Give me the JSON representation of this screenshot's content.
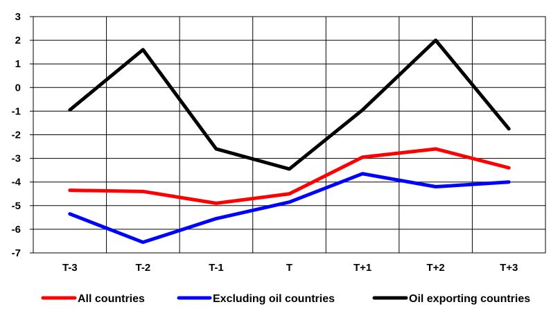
{
  "chart_data": {
    "type": "line",
    "categories": [
      "T-3",
      "T-2",
      "T-1",
      "T",
      "T+1",
      "T+2",
      "T+3"
    ],
    "ylim": [
      -7,
      3
    ],
    "yticks": [
      3,
      2,
      1,
      0,
      -1,
      -2,
      -3,
      -4,
      -5,
      -6,
      -7
    ],
    "grid": true,
    "legend_position": "bottom",
    "title": "",
    "xlabel": "",
    "ylabel": "",
    "series": [
      {
        "name": "All countries",
        "color": "#ff0000",
        "values": [
          -4.35,
          -4.4,
          -4.9,
          -4.5,
          -2.95,
          -2.6,
          -3.4
        ]
      },
      {
        "name": "Excluding oil countries",
        "color": "#0000ff",
        "values": [
          -5.35,
          -6.55,
          -5.55,
          -4.85,
          -3.65,
          -4.2,
          -4.0
        ]
      },
      {
        "name": "Oil exporting countries",
        "color": "#000000",
        "values": [
          -0.95,
          1.6,
          -2.6,
          -3.45,
          -0.95,
          2.0,
          -1.75
        ]
      }
    ]
  }
}
